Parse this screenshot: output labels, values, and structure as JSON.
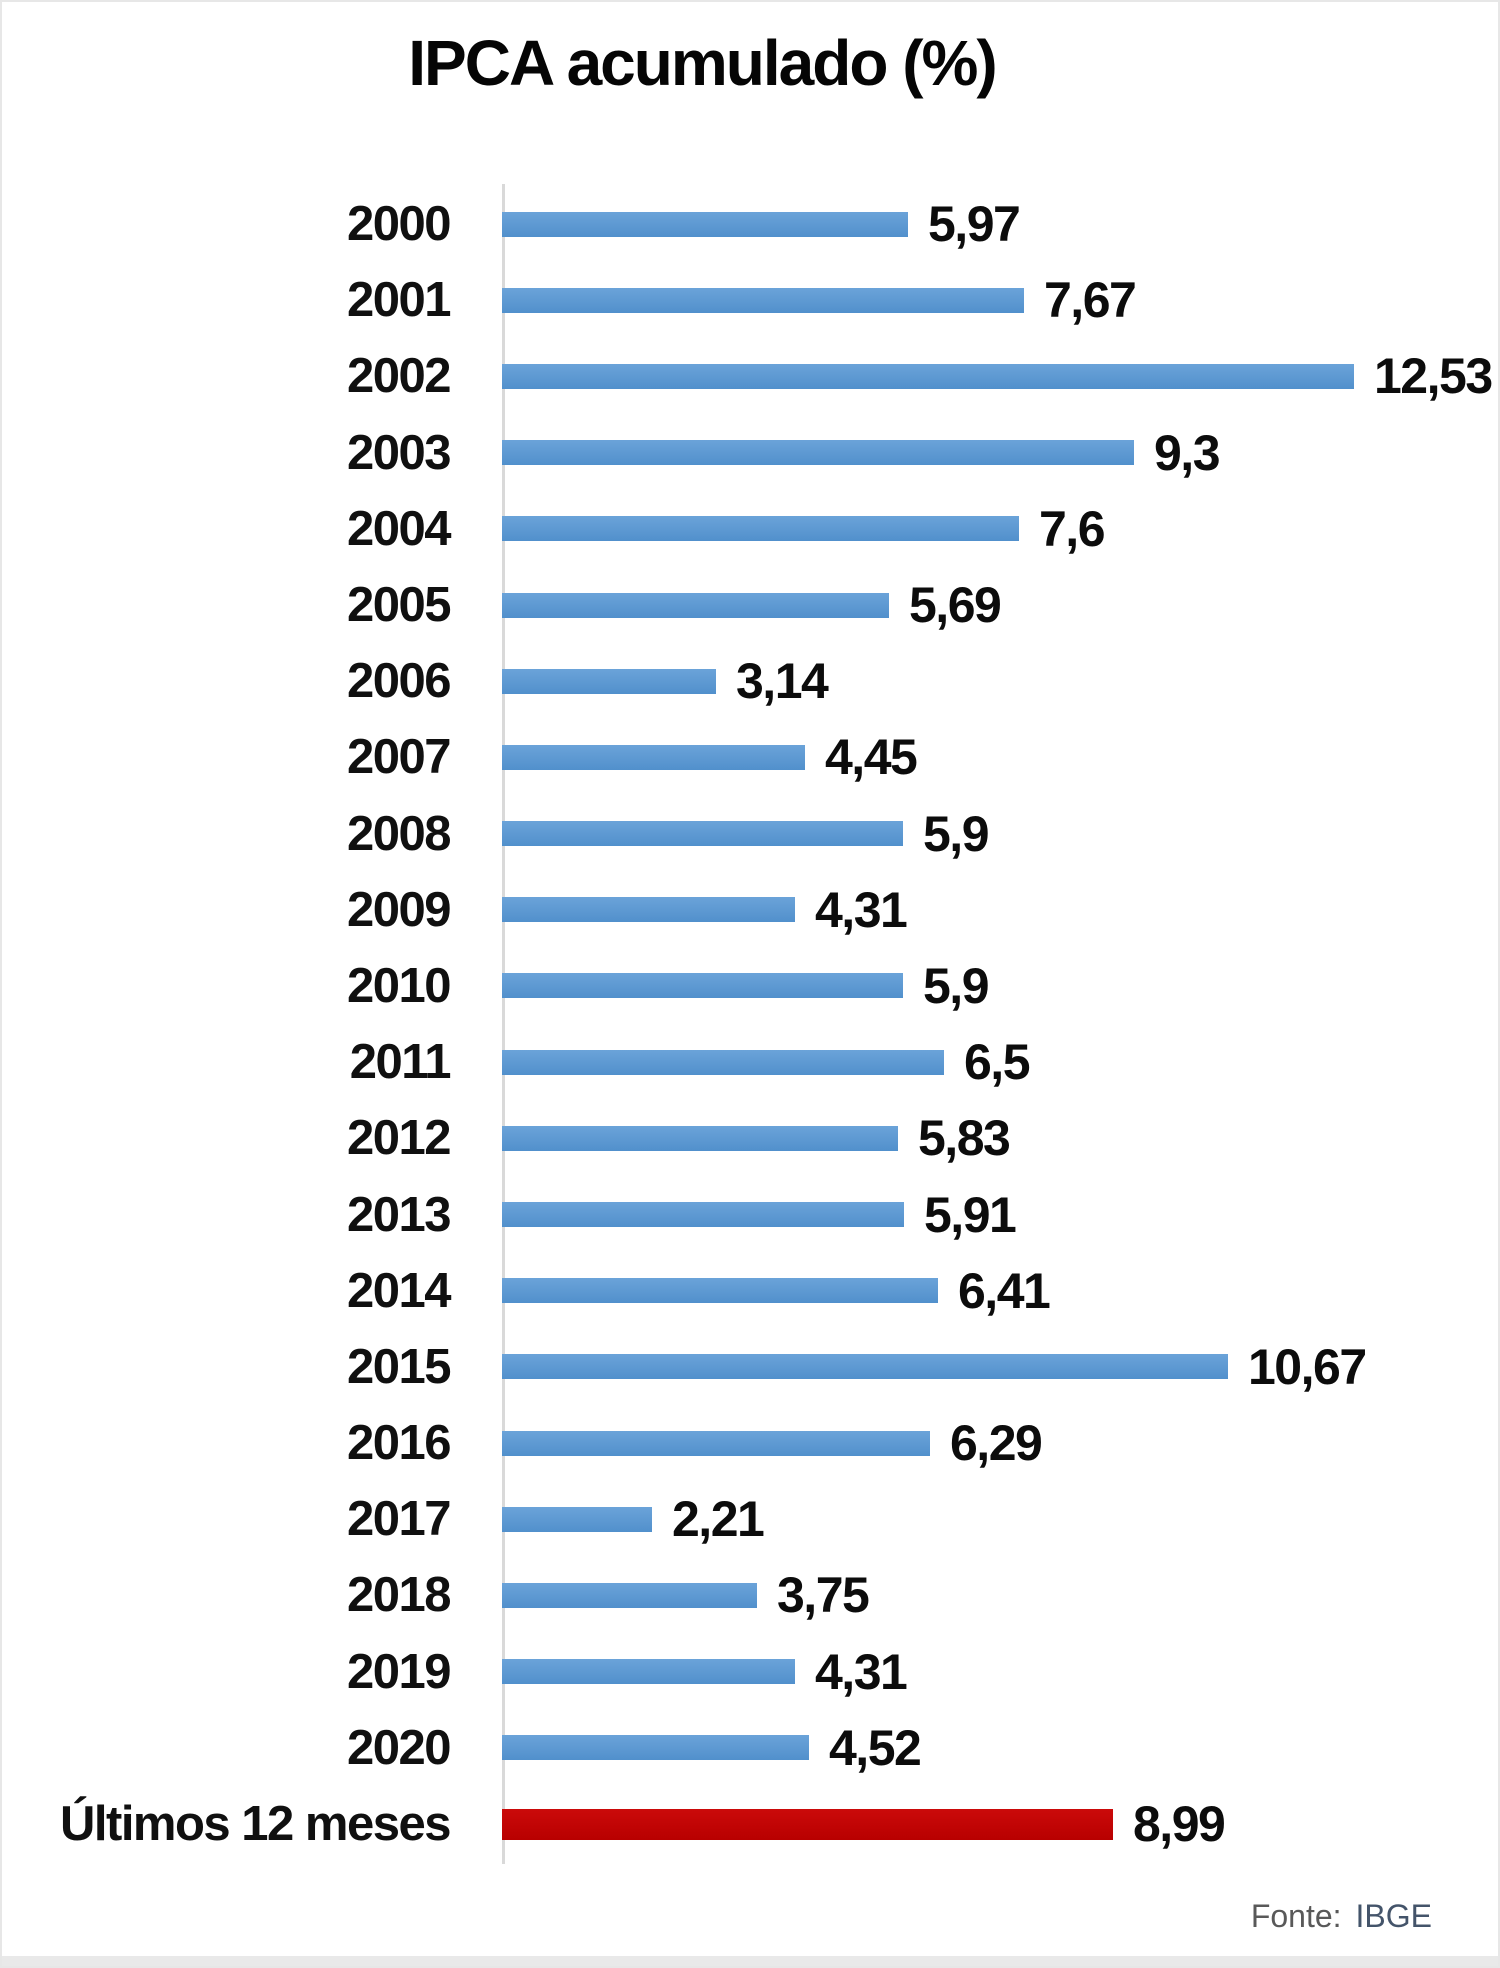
{
  "title": "IPCA acumulado (%)",
  "source": {
    "prefix": "Fonte:",
    "name": "IBGE"
  },
  "colors": {
    "bar_blue": "#5B9BD5",
    "bar_red": "#C00000",
    "axis_line": "#D9D9D9",
    "text": "#000000",
    "source_text": "#595959"
  },
  "chart_data": {
    "type": "bar",
    "orientation": "horizontal",
    "title": "IPCA acumulado (%)",
    "categories": [
      "2000",
      "2001",
      "2002",
      "2003",
      "2004",
      "2005",
      "2006",
      "2007",
      "2008",
      "2009",
      "2010",
      "2011",
      "2012",
      "2013",
      "2014",
      "2015",
      "2016",
      "2017",
      "2018",
      "2019",
      "2020",
      "Últimos 12 meses"
    ],
    "values": [
      5.97,
      7.67,
      12.53,
      9.3,
      7.6,
      5.69,
      3.14,
      4.45,
      5.9,
      4.31,
      5.9,
      6.5,
      5.83,
      5.91,
      6.41,
      10.67,
      6.29,
      2.21,
      3.75,
      4.31,
      4.52,
      8.99
    ],
    "labels": [
      "5,97",
      "7,67",
      "12,53",
      "9,3",
      "7,6",
      "5,69",
      "3,14",
      "4,45",
      "5,9",
      "4,31",
      "5,9",
      "6,5",
      "5,83",
      "5,91",
      "6,41",
      "10,67",
      "6,29",
      "2,21",
      "3,75",
      "4,31",
      "4,52",
      "8,99"
    ],
    "highlight_category": "Últimos 12 meses",
    "xlim": [
      0,
      13
    ],
    "grid": false,
    "legend": false,
    "value_labels_position": "end-of-bar",
    "source": "Fonte: IBGE"
  }
}
